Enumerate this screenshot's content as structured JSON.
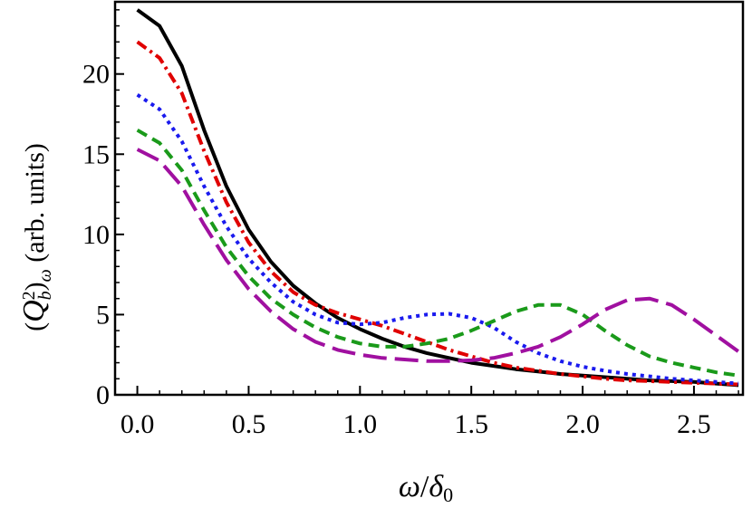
{
  "chart_data": {
    "type": "line",
    "title": "",
    "xlabel": "ω/δ₀",
    "ylabel": "(Q_b^2)_ω (arb. units)",
    "xlim": [
      -0.1,
      2.72
    ],
    "ylim": [
      0,
      24.5
    ],
    "xticks": [
      "0.0",
      "0.5",
      "1.0",
      "1.5",
      "2.0",
      "2.5"
    ],
    "yticks": [
      "0",
      "5",
      "10",
      "15",
      "20"
    ],
    "grid": false,
    "legend": "none",
    "x": [
      0.0,
      0.1,
      0.2,
      0.3,
      0.4,
      0.5,
      0.6,
      0.7,
      0.8,
      0.9,
      1.0,
      1.1,
      1.2,
      1.3,
      1.4,
      1.5,
      1.6,
      1.7,
      1.8,
      1.9,
      2.0,
      2.1,
      2.2,
      2.3,
      2.4,
      2.5,
      2.6,
      2.7
    ],
    "series": [
      {
        "color": "#000000",
        "dash": "solid",
        "values": [
          24.0,
          23.0,
          20.5,
          16.5,
          13.0,
          10.3,
          8.3,
          6.8,
          5.7,
          4.8,
          4.1,
          3.5,
          3.0,
          2.6,
          2.3,
          2.0,
          1.8,
          1.6,
          1.45,
          1.3,
          1.2,
          1.1,
          1.0,
          0.9,
          0.85,
          0.8,
          0.7,
          0.6
        ]
      },
      {
        "color": "#e00000",
        "dash": "dashdot",
        "values": [
          22.0,
          21.0,
          18.8,
          15.2,
          12.0,
          9.5,
          7.7,
          6.4,
          5.6,
          5.1,
          4.7,
          4.3,
          3.8,
          3.3,
          2.8,
          2.4,
          2.0,
          1.7,
          1.5,
          1.3,
          1.15,
          1.0,
          0.9,
          0.85,
          0.8,
          0.75,
          0.7,
          0.65
        ]
      },
      {
        "color": "#1a1aee",
        "dash": "dotted",
        "values": [
          18.7,
          17.8,
          15.8,
          13.0,
          10.5,
          8.5,
          7.0,
          5.8,
          5.0,
          4.5,
          4.4,
          4.5,
          4.8,
          5.0,
          5.05,
          4.8,
          4.2,
          3.3,
          2.6,
          2.1,
          1.75,
          1.5,
          1.3,
          1.15,
          1.0,
          0.9,
          0.8,
          0.7
        ]
      },
      {
        "color": "#1a9a1a",
        "dash": "dashed",
        "values": [
          16.5,
          15.7,
          14.0,
          11.5,
          9.2,
          7.4,
          6.0,
          5.0,
          4.2,
          3.6,
          3.2,
          3.0,
          3.0,
          3.2,
          3.5,
          4.0,
          4.6,
          5.2,
          5.6,
          5.6,
          5.0,
          4.0,
          3.1,
          2.4,
          2.0,
          1.7,
          1.4,
          1.2
        ]
      },
      {
        "color": "#a010a0",
        "dash": "longdash",
        "values": [
          15.3,
          14.6,
          13.0,
          10.6,
          8.4,
          6.6,
          5.2,
          4.1,
          3.3,
          2.8,
          2.5,
          2.3,
          2.2,
          2.1,
          2.1,
          2.15,
          2.3,
          2.6,
          3.0,
          3.6,
          4.4,
          5.3,
          5.9,
          6.0,
          5.6,
          4.7,
          3.7,
          2.7
        ]
      }
    ]
  }
}
